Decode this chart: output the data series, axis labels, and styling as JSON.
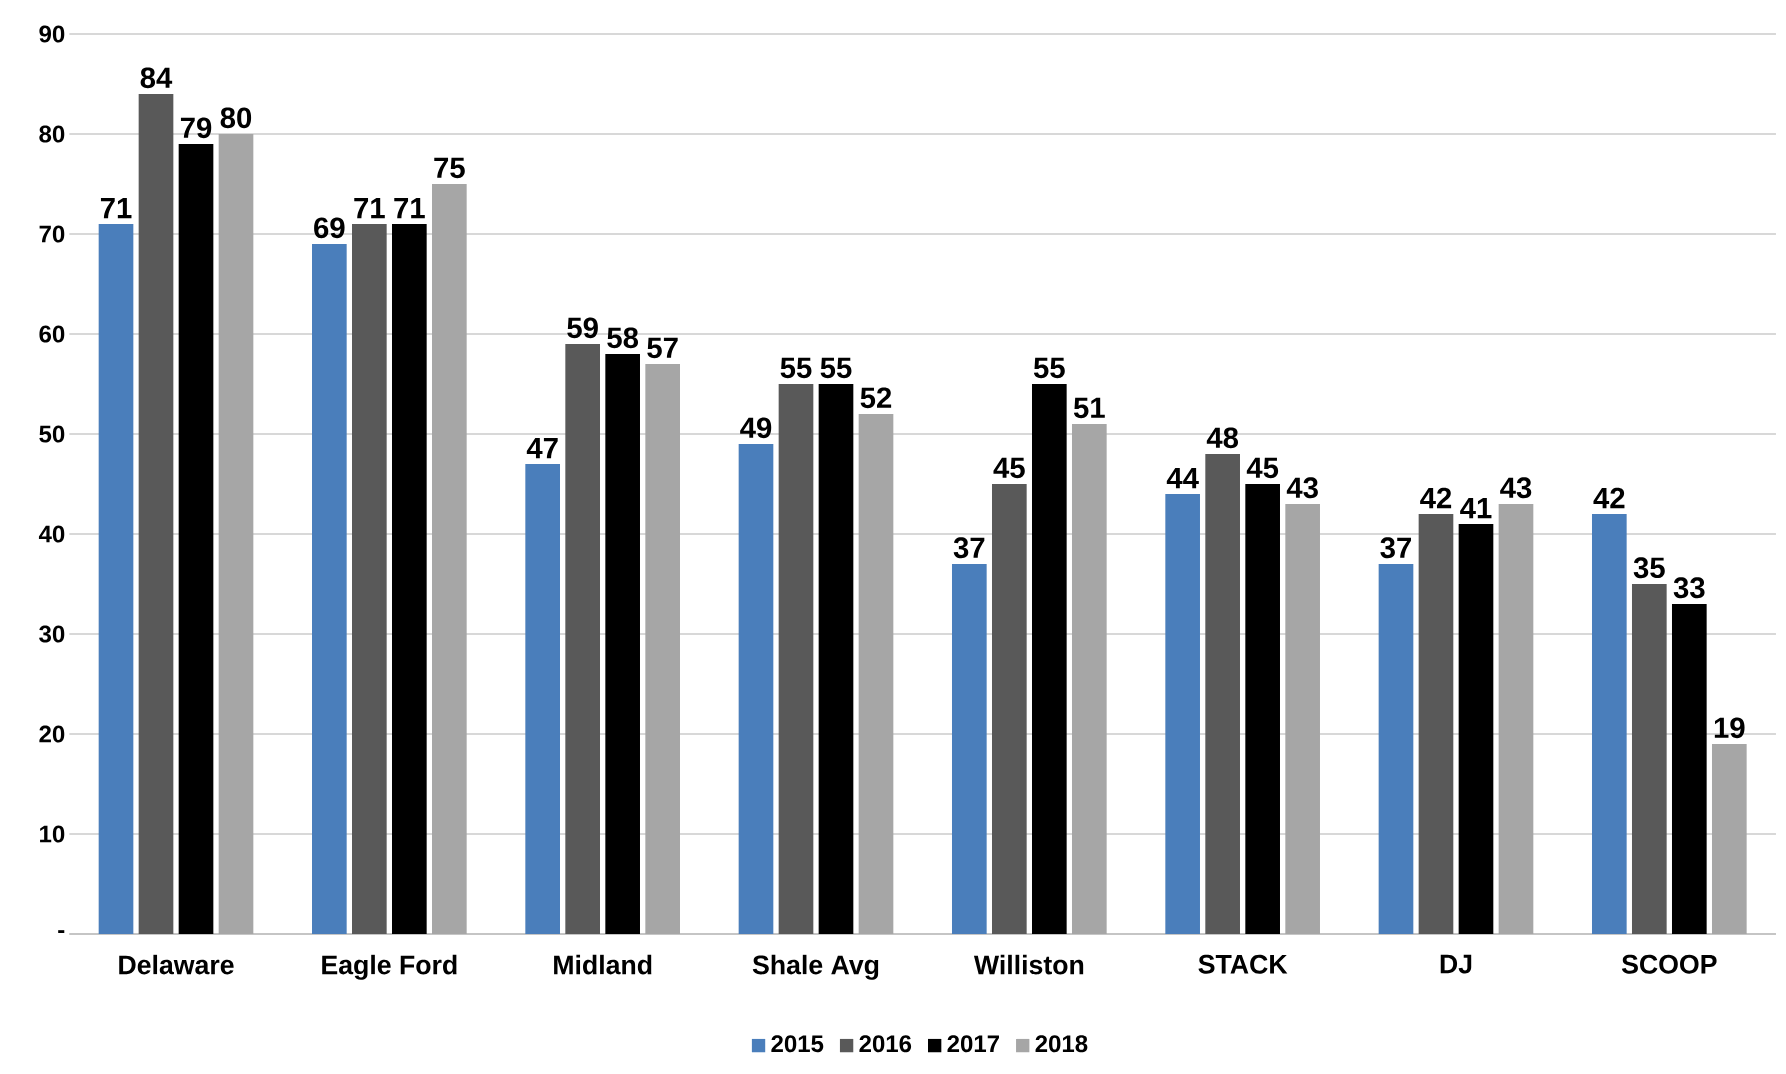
{
  "chart_data": {
    "type": "bar",
    "categories": [
      "Delaware",
      "Eagle Ford",
      "Midland",
      "Shale Avg",
      "Williston",
      "STACK",
      "DJ",
      "SCOOP"
    ],
    "series": [
      {
        "name": "2015",
        "color": "#4a7ebb",
        "values": [
          71,
          69,
          47,
          49,
          37,
          44,
          37,
          42
        ]
      },
      {
        "name": "2016",
        "color": "#595959",
        "values": [
          84,
          71,
          59,
          55,
          45,
          48,
          42,
          35
        ]
      },
      {
        "name": "2017",
        "color": "#000000",
        "values": [
          79,
          71,
          58,
          55,
          55,
          45,
          41,
          33
        ]
      },
      {
        "name": "2018",
        "color": "#a6a6a6",
        "values": [
          80,
          75,
          57,
          52,
          51,
          43,
          43,
          19
        ]
      }
    ],
    "ylim": [
      0,
      90
    ],
    "yticks": [
      {
        "value": 0,
        "label": "-"
      },
      10,
      20,
      30,
      40,
      50,
      60,
      70,
      80,
      90
    ],
    "grid": "y",
    "legend": "bottom",
    "data_labels": true
  }
}
